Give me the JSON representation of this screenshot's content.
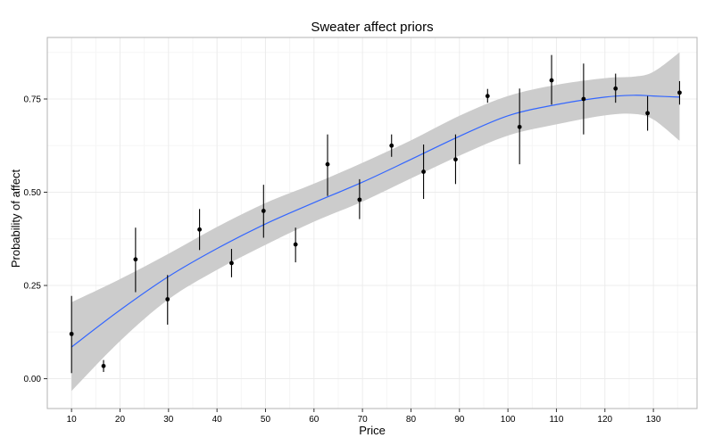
{
  "chart_data": {
    "type": "scatter",
    "title": "Sweater affect priors",
    "xlabel": "Price",
    "ylabel": "Probability of affect",
    "xlim": [
      5,
      139
    ],
    "ylim": [
      -0.08,
      0.915
    ],
    "x_ticks": [
      10,
      20,
      30,
      40,
      50,
      60,
      70,
      80,
      90,
      100,
      110,
      120,
      130
    ],
    "x_minor_ticks": [
      15,
      25,
      35,
      45,
      55,
      65,
      75,
      85,
      95,
      105,
      115,
      125,
      135
    ],
    "y_ticks": [
      0.0,
      0.25,
      0.5,
      0.75
    ],
    "y_tick_labels": [
      "0.00",
      "0.25",
      "0.50",
      "0.75"
    ],
    "y_minor_ticks": [
      0.125,
      0.375,
      0.625,
      0.875
    ],
    "grid": true,
    "colors": {
      "panel_border": "#b3b3b3",
      "grid_major": "#ececec",
      "grid_minor": "#f5f5f5",
      "ribbon": "#cccccc",
      "smooth_line": "#3366ff",
      "points": "#000000"
    },
    "points": [
      {
        "x": 10,
        "y": 0.12,
        "ymin": 0.015,
        "ymax": 0.222
      },
      {
        "x": 16.6,
        "y": 0.034,
        "ymin": 0.018,
        "ymax": 0.05
      },
      {
        "x": 23.2,
        "y": 0.32,
        "ymin": 0.232,
        "ymax": 0.405
      },
      {
        "x": 29.8,
        "y": 0.213,
        "ymin": 0.145,
        "ymax": 0.278
      },
      {
        "x": 36.4,
        "y": 0.4,
        "ymin": 0.345,
        "ymax": 0.455
      },
      {
        "x": 43,
        "y": 0.31,
        "ymin": 0.272,
        "ymax": 0.348
      },
      {
        "x": 49.6,
        "y": 0.45,
        "ymin": 0.378,
        "ymax": 0.52
      },
      {
        "x": 56.2,
        "y": 0.36,
        "ymin": 0.312,
        "ymax": 0.405
      },
      {
        "x": 62.8,
        "y": 0.575,
        "ymin": 0.49,
        "ymax": 0.655
      },
      {
        "x": 69.4,
        "y": 0.48,
        "ymin": 0.428,
        "ymax": 0.535
      },
      {
        "x": 76,
        "y": 0.625,
        "ymin": 0.595,
        "ymax": 0.655
      },
      {
        "x": 82.6,
        "y": 0.555,
        "ymin": 0.482,
        "ymax": 0.628
      },
      {
        "x": 89.2,
        "y": 0.588,
        "ymin": 0.522,
        "ymax": 0.655
      },
      {
        "x": 95.8,
        "y": 0.758,
        "ymin": 0.74,
        "ymax": 0.777
      },
      {
        "x": 102.4,
        "y": 0.675,
        "ymin": 0.575,
        "ymax": 0.778
      },
      {
        "x": 109,
        "y": 0.8,
        "ymin": 0.735,
        "ymax": 0.868
      },
      {
        "x": 115.6,
        "y": 0.75,
        "ymin": 0.655,
        "ymax": 0.845
      },
      {
        "x": 122.2,
        "y": 0.778,
        "ymin": 0.74,
        "ymax": 0.818
      },
      {
        "x": 128.8,
        "y": 0.712,
        "ymin": 0.665,
        "ymax": 0.758
      },
      {
        "x": 135.4,
        "y": 0.767,
        "ymin": 0.735,
        "ymax": 0.798
      }
    ],
    "smooth": {
      "x": [
        10,
        20,
        30,
        40,
        50,
        60,
        70,
        80,
        90,
        100,
        110,
        120,
        126,
        130,
        135.4
      ],
      "y": [
        0.085,
        0.184,
        0.274,
        0.349,
        0.415,
        0.472,
        0.527,
        0.588,
        0.65,
        0.705,
        0.735,
        0.755,
        0.76,
        0.758,
        0.755
      ],
      "ymin": [
        -0.033,
        0.101,
        0.213,
        0.292,
        0.359,
        0.421,
        0.475,
        0.537,
        0.598,
        0.652,
        0.682,
        0.706,
        0.71,
        0.695,
        0.638
      ],
      "ymax": [
        0.205,
        0.267,
        0.335,
        0.407,
        0.471,
        0.523,
        0.579,
        0.639,
        0.705,
        0.758,
        0.788,
        0.806,
        0.81,
        0.823,
        0.875
      ]
    }
  }
}
